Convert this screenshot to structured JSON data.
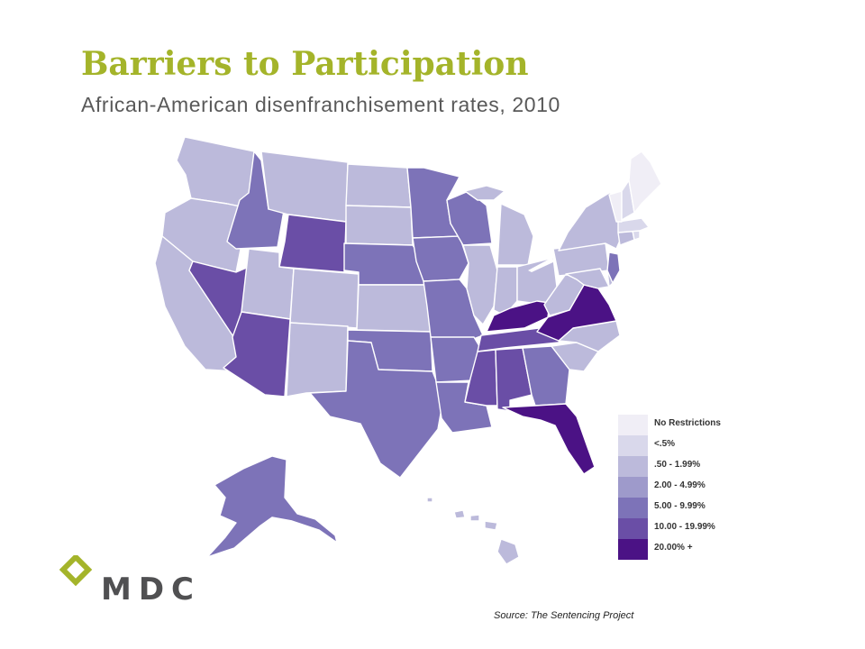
{
  "title": "Barriers to Participation",
  "subtitle": "African-American disenfranchisement rates, 2010",
  "colors": {
    "title": "#a4b42a",
    "no_restrictions": "#f0eef6",
    "lt5": "#d9d8eb",
    "c050": "#bcbadb",
    "c200": "#9e9acb",
    "c500": "#7d73b8",
    "c1000": "#6a4ea6",
    "c2000": "#4b1285",
    "logo_mark": "#a4b42a",
    "logo_text": "#505052"
  },
  "legend": [
    {
      "label": "No Restrictions",
      "color_key": "no_restrictions"
    },
    {
      "label": "<.5%",
      "color_key": "lt5"
    },
    {
      "label": ".50 - 1.99%",
      "color_key": "c050"
    },
    {
      "label": "2.00 - 4.99%",
      "color_key": "c200"
    },
    {
      "label": "5.00 - 9.99%",
      "color_key": "c500"
    },
    {
      "label": "10.00 - 19.99%",
      "color_key": "c1000"
    },
    {
      "label": "20.00% +",
      "color_key": "c2000"
    }
  ],
  "logo_text": "MDC",
  "source": "Source: The Sentencing Project",
  "map_data": {
    "type": "choropleth",
    "region": "United States",
    "year": 2010,
    "categories": {
      "no_restrictions": [
        "Maine",
        "Vermont"
      ],
      "lt5": [
        "New Hampshire",
        "Massachusetts",
        "Rhode Island"
      ],
      "c050": [
        "Washington",
        "Oregon",
        "California",
        "Montana",
        "North Dakota",
        "South Dakota",
        "Utah",
        "Colorado",
        "New Mexico",
        "Kansas",
        "Illinois",
        "Michigan",
        "Indiana",
        "Ohio",
        "Pennsylvania",
        "New York",
        "Connecticut",
        "West Virginia",
        "North Carolina",
        "South Carolina",
        "Maryland",
        "Delaware",
        "Hawaii"
      ],
      "c200": [],
      "c500": [
        "Idaho",
        "Nebraska",
        "Minnesota",
        "Iowa",
        "Missouri",
        "Wisconsin",
        "Oklahoma",
        "Arkansas",
        "Texas",
        "Louisiana",
        "Georgia",
        "New Jersey",
        "Alaska"
      ],
      "c1000": [
        "Nevada",
        "Arizona",
        "Wyoming",
        "Tennessee",
        "Mississippi",
        "Alabama"
      ],
      "c2000": [
        "Kentucky",
        "Virginia",
        "Florida"
      ]
    }
  }
}
